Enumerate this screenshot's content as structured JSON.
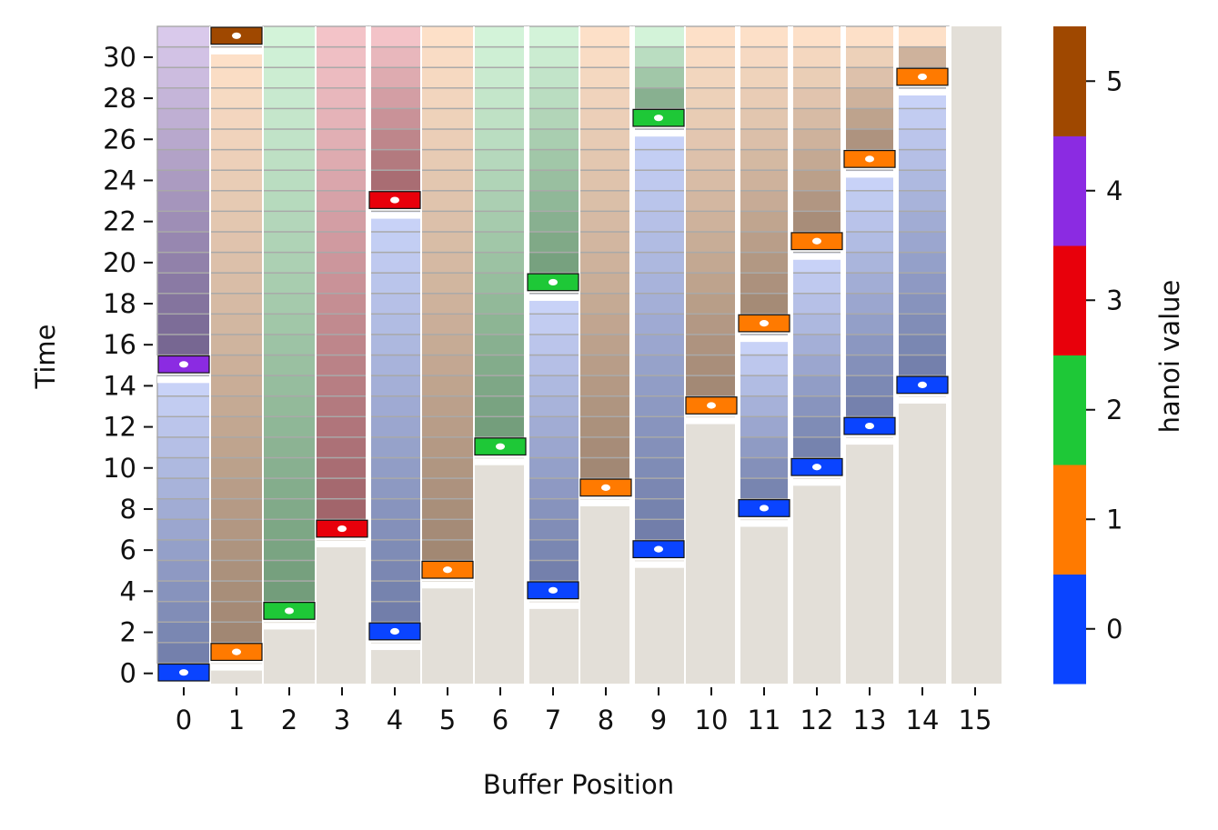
{
  "chart_data": {
    "type": "heatmap",
    "xlabel": "Buffer Position",
    "ylabel": "Time",
    "x_ticks": [
      "0",
      "1",
      "2",
      "3",
      "4",
      "5",
      "6",
      "7",
      "8",
      "9",
      "10",
      "11",
      "12",
      "13",
      "14",
      "15"
    ],
    "y_ticks": [
      "0",
      "2",
      "4",
      "6",
      "8",
      "10",
      "12",
      "14",
      "16",
      "18",
      "20",
      "22",
      "24",
      "26",
      "28",
      "30"
    ],
    "ylim": [
      0,
      31
    ],
    "colorbar": {
      "label": "hanoi value",
      "ticks": [
        "0",
        "1",
        "2",
        "3",
        "4",
        "5"
      ],
      "colors": [
        "#0a44ff",
        "#ff7a00",
        "#1ec837",
        "#e8000b",
        "#8b2be2",
        "#9f4800"
      ]
    },
    "write_events": [
      {
        "position": 0,
        "time": 0,
        "value": 0
      },
      {
        "position": 0,
        "time": 15,
        "value": 4
      },
      {
        "position": 1,
        "time": 1,
        "value": 1
      },
      {
        "position": 1,
        "time": 31,
        "value": 5
      },
      {
        "position": 2,
        "time": 3,
        "value": 2
      },
      {
        "position": 3,
        "time": 7,
        "value": 3
      },
      {
        "position": 4,
        "time": 2,
        "value": 0
      },
      {
        "position": 4,
        "time": 23,
        "value": 3
      },
      {
        "position": 5,
        "time": 5,
        "value": 1
      },
      {
        "position": 6,
        "time": 11,
        "value": 2
      },
      {
        "position": 7,
        "time": 4,
        "value": 0
      },
      {
        "position": 7,
        "time": 19,
        "value": 2
      },
      {
        "position": 8,
        "time": 9,
        "value": 1
      },
      {
        "position": 9,
        "time": 6,
        "value": 0
      },
      {
        "position": 9,
        "time": 27,
        "value": 2
      },
      {
        "position": 10,
        "time": 13,
        "value": 1
      },
      {
        "position": 11,
        "time": 8,
        "value": 0
      },
      {
        "position": 11,
        "time": 17,
        "value": 1
      },
      {
        "position": 12,
        "time": 10,
        "value": 0
      },
      {
        "position": 12,
        "time": 21,
        "value": 1
      },
      {
        "position": 13,
        "time": 12,
        "value": 0
      },
      {
        "position": 13,
        "time": 25,
        "value": 1
      },
      {
        "position": 14,
        "time": 14,
        "value": 0
      },
      {
        "position": 14,
        "time": 29,
        "value": 1
      }
    ],
    "grid": false
  }
}
